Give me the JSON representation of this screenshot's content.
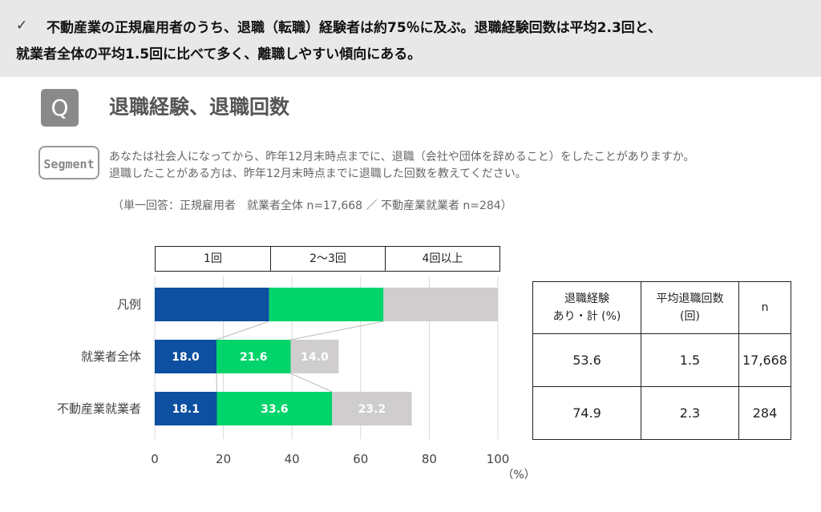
{
  "banner": {
    "check": "✓",
    "line1": "不動産業の正規雇用者のうち、退職（転職）経験者は約75％に及ぶ。退職経験回数は平均2.3回と、",
    "line2": "就業者全体の平均1.5回に比べて多く、離職しやすい傾向にある。"
  },
  "header": {
    "q_badge": "Q",
    "title": "退職経験、退職回数",
    "segment_badge": "Segment",
    "question_line1": "あなたは社会人になってから、昨年12月末時点までに、退職（会社や団体を辞めること）をしたことがありますか。",
    "question_line2": "退職したことがある方は、昨年12月末時点までに退職した回数を教えてください。",
    "answer_note": "（単一回答：正規雇用者　就業者全体 n=17,668 ／ 不動産業就業者 n=284）"
  },
  "chart_data": {
    "type": "bar",
    "orientation": "horizontal",
    "stacked": true,
    "legend_labels": [
      "1回",
      "2〜3回",
      "4回以上"
    ],
    "legend_row_label": "凡例",
    "categories": [
      "就業者全体",
      "不動産業就業者"
    ],
    "series": [
      {
        "name": "1回",
        "values": [
          18.0,
          18.1
        ],
        "color": "#0d4fa0"
      },
      {
        "name": "2〜3回",
        "values": [
          21.6,
          33.6
        ],
        "color": "#00d46a"
      },
      {
        "name": "4回以上",
        "values": [
          14.0,
          23.2
        ],
        "color": "#cfcdcd"
      }
    ],
    "xlim": [
      0,
      100
    ],
    "xticks": [
      "0",
      "20",
      "40",
      "60",
      "80",
      "100"
    ],
    "xunit": "（%）",
    "grid": true
  },
  "table": {
    "headers": [
      "退職経験\nあり・計 (%)",
      "平均退職回数\n(回)",
      "n"
    ],
    "rows": [
      [
        "53.6",
        "1.5",
        "17,668"
      ],
      [
        "74.9",
        "2.3",
        "284"
      ]
    ]
  }
}
